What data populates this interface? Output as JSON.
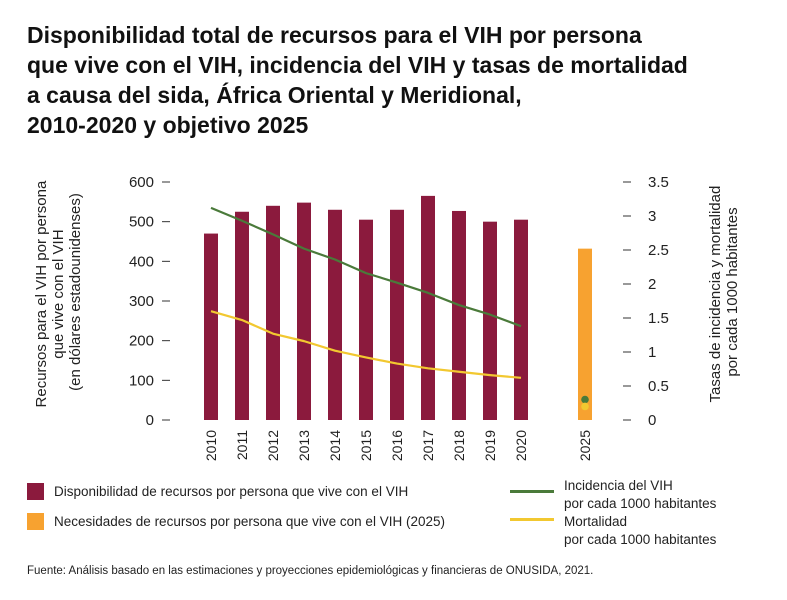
{
  "title_lines": [
    "Disponibilidad total de recursos para el VIH por persona",
    "que vive con el VIH, incidencia del VIH y tasas de mortalidad",
    "a causa del sida, África Oriental y Meridional,",
    "2010-2020 y objetivo 2025"
  ],
  "chart_data": {
    "type": "bar",
    "categories": [
      "2010",
      "2011",
      "2012",
      "2013",
      "2014",
      "2015",
      "2016",
      "2017",
      "2018",
      "2019",
      "2020",
      "2025"
    ],
    "ylabel_left": [
      "Recursos para el VIH por persona",
      "que vive con el VIH",
      "(en dólares estadounidenses)"
    ],
    "ylabel_right": [
      "Tasas de incidencia y mortalidad",
      "por cada 1000 habitantes"
    ],
    "ylim_left": [
      0,
      600
    ],
    "yticks_left": [
      "0",
      "100",
      "200",
      "300",
      "400",
      "500",
      "600"
    ],
    "ylim_right": [
      0,
      3.5
    ],
    "yticks_right": [
      "0",
      "0.5",
      "1",
      "1.5",
      "2",
      "2.5",
      "3",
      "3.5"
    ],
    "grid": false,
    "legend_position": "bottom",
    "series": [
      {
        "name": "Disponibilidad de recursos por persona que vive con el VIH",
        "kind": "bar",
        "axis": "left",
        "color": "#8b1a3d",
        "values": [
          470,
          525,
          540,
          548,
          530,
          505,
          530,
          565,
          527,
          500,
          505,
          null
        ]
      },
      {
        "name": "Necesidades de recursos por persona que vive con el VIH (2025)",
        "kind": "bar",
        "axis": "left",
        "color": "#f7a230",
        "values": [
          null,
          null,
          null,
          null,
          null,
          null,
          null,
          null,
          null,
          null,
          null,
          432
        ]
      },
      {
        "name_lines": [
          "Incidencia del VIH",
          "por cada 1000 habitantes"
        ],
        "kind": "line",
        "axis": "right",
        "color": "#4a7a3a",
        "values": [
          3.12,
          2.93,
          2.73,
          2.52,
          2.36,
          2.16,
          2.02,
          1.87,
          1.69,
          1.55,
          1.38,
          0.3
        ]
      },
      {
        "name_lines": [
          "Mortalidad",
          "por cada 1000 habitantes"
        ],
        "kind": "line",
        "axis": "right",
        "color": "#f2c830",
        "values": [
          1.6,
          1.47,
          1.27,
          1.16,
          1.02,
          0.92,
          0.83,
          0.76,
          0.71,
          0.66,
          0.62,
          0.2
        ]
      }
    ]
  },
  "source": "Fuente: Análisis basado en las estimaciones y proyecciones epidemiológicas y financieras de ONUSIDA, 2021."
}
